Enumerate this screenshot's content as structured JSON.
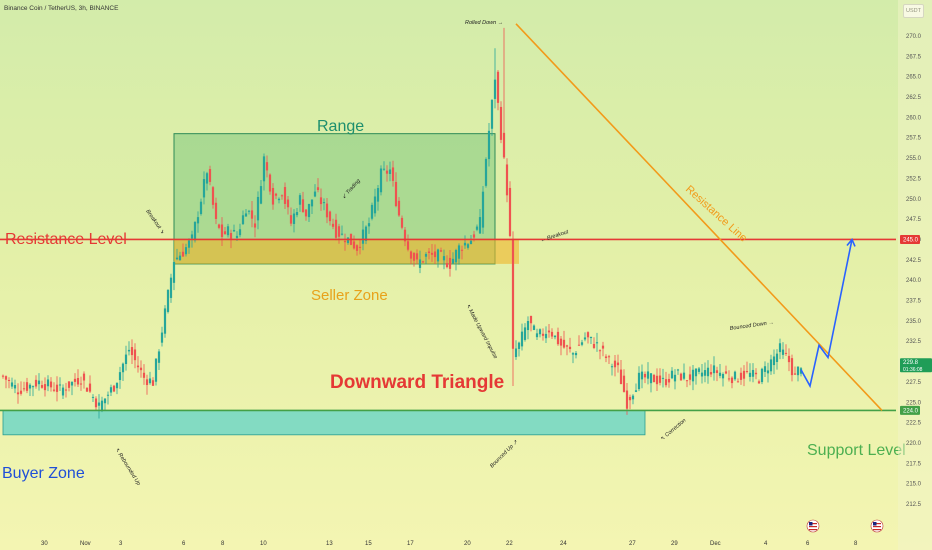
{
  "header": {
    "symbol": "Binance Coin / TetherUS, 3h, BINANCE",
    "unit": "USDT"
  },
  "colors": {
    "resistance": "#e53935",
    "support": "#43a047",
    "trend": "#f29a1a",
    "projection": "#2962ff",
    "range_zone": "#7fc97f",
    "seller_zone": "#f0b429",
    "buyer_zone": "#5fd3c8",
    "candle_up": "#26a69a",
    "candle_down": "#ef5350"
  },
  "chart_data": {
    "type": "candlestick",
    "ylim": [
      211,
      274
    ],
    "y_ticks": [
      "212.5",
      "215.0",
      "217.5",
      "220.0",
      "222.5",
      "225.0",
      "227.5",
      "230.0",
      "232.5",
      "235.0",
      "237.5",
      "240.0",
      "242.5",
      "245.0",
      "247.5",
      "250.0",
      "252.5",
      "255.0",
      "257.5",
      "260.0",
      "262.5",
      "265.0",
      "267.5",
      "270.0"
    ],
    "x_ticks": [
      "30",
      "Nov",
      "3",
      "6",
      "8",
      "10",
      "13",
      "15",
      "17",
      "20",
      "22",
      "24",
      "27",
      "29",
      "Dec",
      "4",
      "6",
      "8"
    ],
    "x_tick_bars": [
      14,
      27,
      40,
      61,
      74,
      87,
      109,
      122,
      136,
      155,
      169,
      187,
      210,
      224,
      237,
      255,
      269,
      285
    ],
    "bar_count": 290,
    "anchors": [
      [
        0,
        228.2
      ],
      [
        5,
        226.5
      ],
      [
        12,
        227.5
      ],
      [
        19,
        226.5
      ],
      [
        26,
        228
      ],
      [
        32,
        224.5
      ],
      [
        37,
        227
      ],
      [
        42,
        231.5
      ],
      [
        47,
        228
      ],
      [
        50,
        227.5
      ],
      [
        54,
        236
      ],
      [
        57,
        242.5
      ],
      [
        60,
        243.5
      ],
      [
        63,
        245
      ],
      [
        66,
        250
      ],
      [
        68,
        253.5
      ],
      [
        71,
        247
      ],
      [
        73,
        245.5
      ],
      [
        75,
        246
      ],
      [
        78,
        245.5
      ],
      [
        81,
        249
      ],
      [
        84,
        247
      ],
      [
        87,
        255
      ],
      [
        90,
        250
      ],
      [
        93,
        251
      ],
      [
        96,
        247
      ],
      [
        99,
        250
      ],
      [
        101,
        248
      ],
      [
        104,
        251
      ],
      [
        107,
        249
      ],
      [
        111,
        246
      ],
      [
        115,
        245
      ],
      [
        118,
        244
      ],
      [
        122,
        247
      ],
      [
        126,
        253
      ],
      [
        129,
        253.5
      ],
      [
        132,
        248
      ],
      [
        135,
        244
      ],
      [
        138,
        242
      ],
      [
        141,
        243
      ],
      [
        145,
        243
      ],
      [
        149,
        242
      ],
      [
        152,
        244
      ],
      [
        156,
        245
      ],
      [
        159,
        247
      ],
      [
        161,
        255
      ],
      [
        164,
        265
      ],
      [
        166,
        258
      ],
      [
        168,
        251
      ],
      [
        169,
        245
      ],
      [
        170,
        231
      ],
      [
        172,
        232
      ],
      [
        175,
        235
      ],
      [
        178,
        233
      ],
      [
        182,
        234
      ],
      [
        186,
        232
      ],
      [
        190,
        231
      ],
      [
        194,
        233
      ],
      [
        198,
        232
      ],
      [
        202,
        230
      ],
      [
        205,
        229
      ],
      [
        208,
        225
      ],
      [
        212,
        228
      ],
      [
        216,
        228
      ],
      [
        220,
        227.5
      ],
      [
        224,
        228.5
      ],
      [
        228,
        228
      ],
      [
        232,
        228.5
      ],
      [
        236,
        229
      ],
      [
        240,
        228.5
      ],
      [
        244,
        228
      ],
      [
        248,
        228.5
      ],
      [
        252,
        228
      ],
      [
        256,
        230
      ],
      [
        259,
        231.5
      ],
      [
        262,
        230
      ],
      [
        264,
        228
      ],
      [
        266,
        229.8
      ]
    ],
    "current_price": "229.8",
    "countdown": "01:36:08",
    "levels": [
      {
        "name": "Resistance Level",
        "price": 245.0,
        "label": "245.0"
      },
      {
        "name": "Support Level",
        "price": 224.0,
        "label": "224.0"
      }
    ],
    "zones": [
      {
        "name": "Range",
        "from_bar": 57,
        "to_bar": 164,
        "low": 242.0,
        "high": 258.0
      },
      {
        "name": "Seller Zone",
        "from_bar": 57,
        "to_bar": 172,
        "low": 242.0,
        "high": 245.0
      },
      {
        "name": "Buyer Zone",
        "from_bar": 0,
        "to_bar": 214,
        "low": 221.0,
        "high": 224.0
      }
    ],
    "trendline": {
      "name": "Resistance Line",
      "from": [
        171,
        271.5
      ],
      "to": [
        293,
        224.0
      ]
    },
    "projection": [
      [
        266,
        229
      ],
      [
        269,
        227
      ],
      [
        272,
        232
      ],
      [
        275,
        230.5
      ],
      [
        283,
        245
      ]
    ],
    "text_labels": {
      "range": "Range",
      "seller_zone": "Seller Zone",
      "buyer_zone": "Buyer Zone",
      "resistance_level": "Resistance Level",
      "support_level": "Support Level",
      "pattern": "Downward Triangle",
      "resistance_line": "Resistance Line"
    },
    "annotations": {
      "rolled_down": "Rolled Down →",
      "breakout_left": "Breakout ↘",
      "trading": "↙ Trading",
      "breakout_right": "← Breakout",
      "made_upward_impulse": "↖ Made Upward Impulse",
      "rebounded_up": "↖ Rebounded Up",
      "bounced_up": "Bounced Up ↗",
      "correction": "↖ Correction",
      "bounced_down": "Bounced Down →"
    }
  }
}
